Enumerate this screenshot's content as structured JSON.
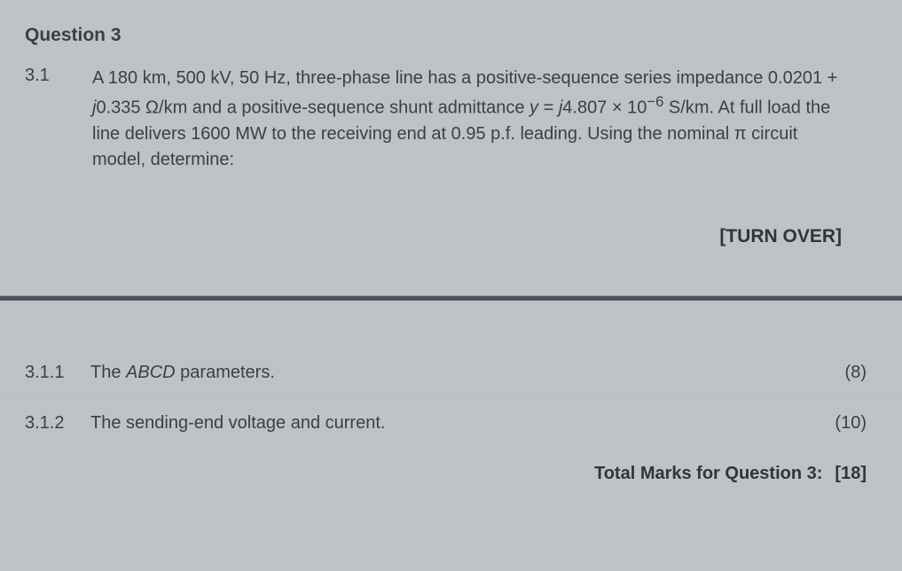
{
  "colors": {
    "background": "#c0c4c9",
    "text": "#3a3e44",
    "strong_text": "#2f333a",
    "divider": "#4e535b"
  },
  "typography": {
    "family": "Arial",
    "heading_size_pt": 16,
    "body_size_pt": 15,
    "line_height": 1.45
  },
  "question": {
    "heading": "Question 3",
    "number": "3.1",
    "body_html": "A 180 km, 500 kV, 50 Hz, three-phase line has a positive-sequence series impedance 0.0201 + <i>j</i>0.335 Ω/km and a positive-sequence shunt admittance <i>y</i> = <i>j</i>4.807 × 10<sup>−6</sup> S/km. At full load the line delivers 1600 MW to the receiving end at 0.95 p.f. leading. Using the nominal π circuit model, determine:",
    "turn_over": "[TURN OVER]"
  },
  "subparts": [
    {
      "number": "3.1.1",
      "text_html": "The <span class=\"ital\">ABCD</span> parameters.",
      "marks": "(8)"
    },
    {
      "number": "3.1.2",
      "text_html": "The sending-end voltage and current.",
      "marks": "(10)"
    }
  ],
  "total": {
    "label": "Total Marks for Question 3:",
    "value": "[18]"
  }
}
